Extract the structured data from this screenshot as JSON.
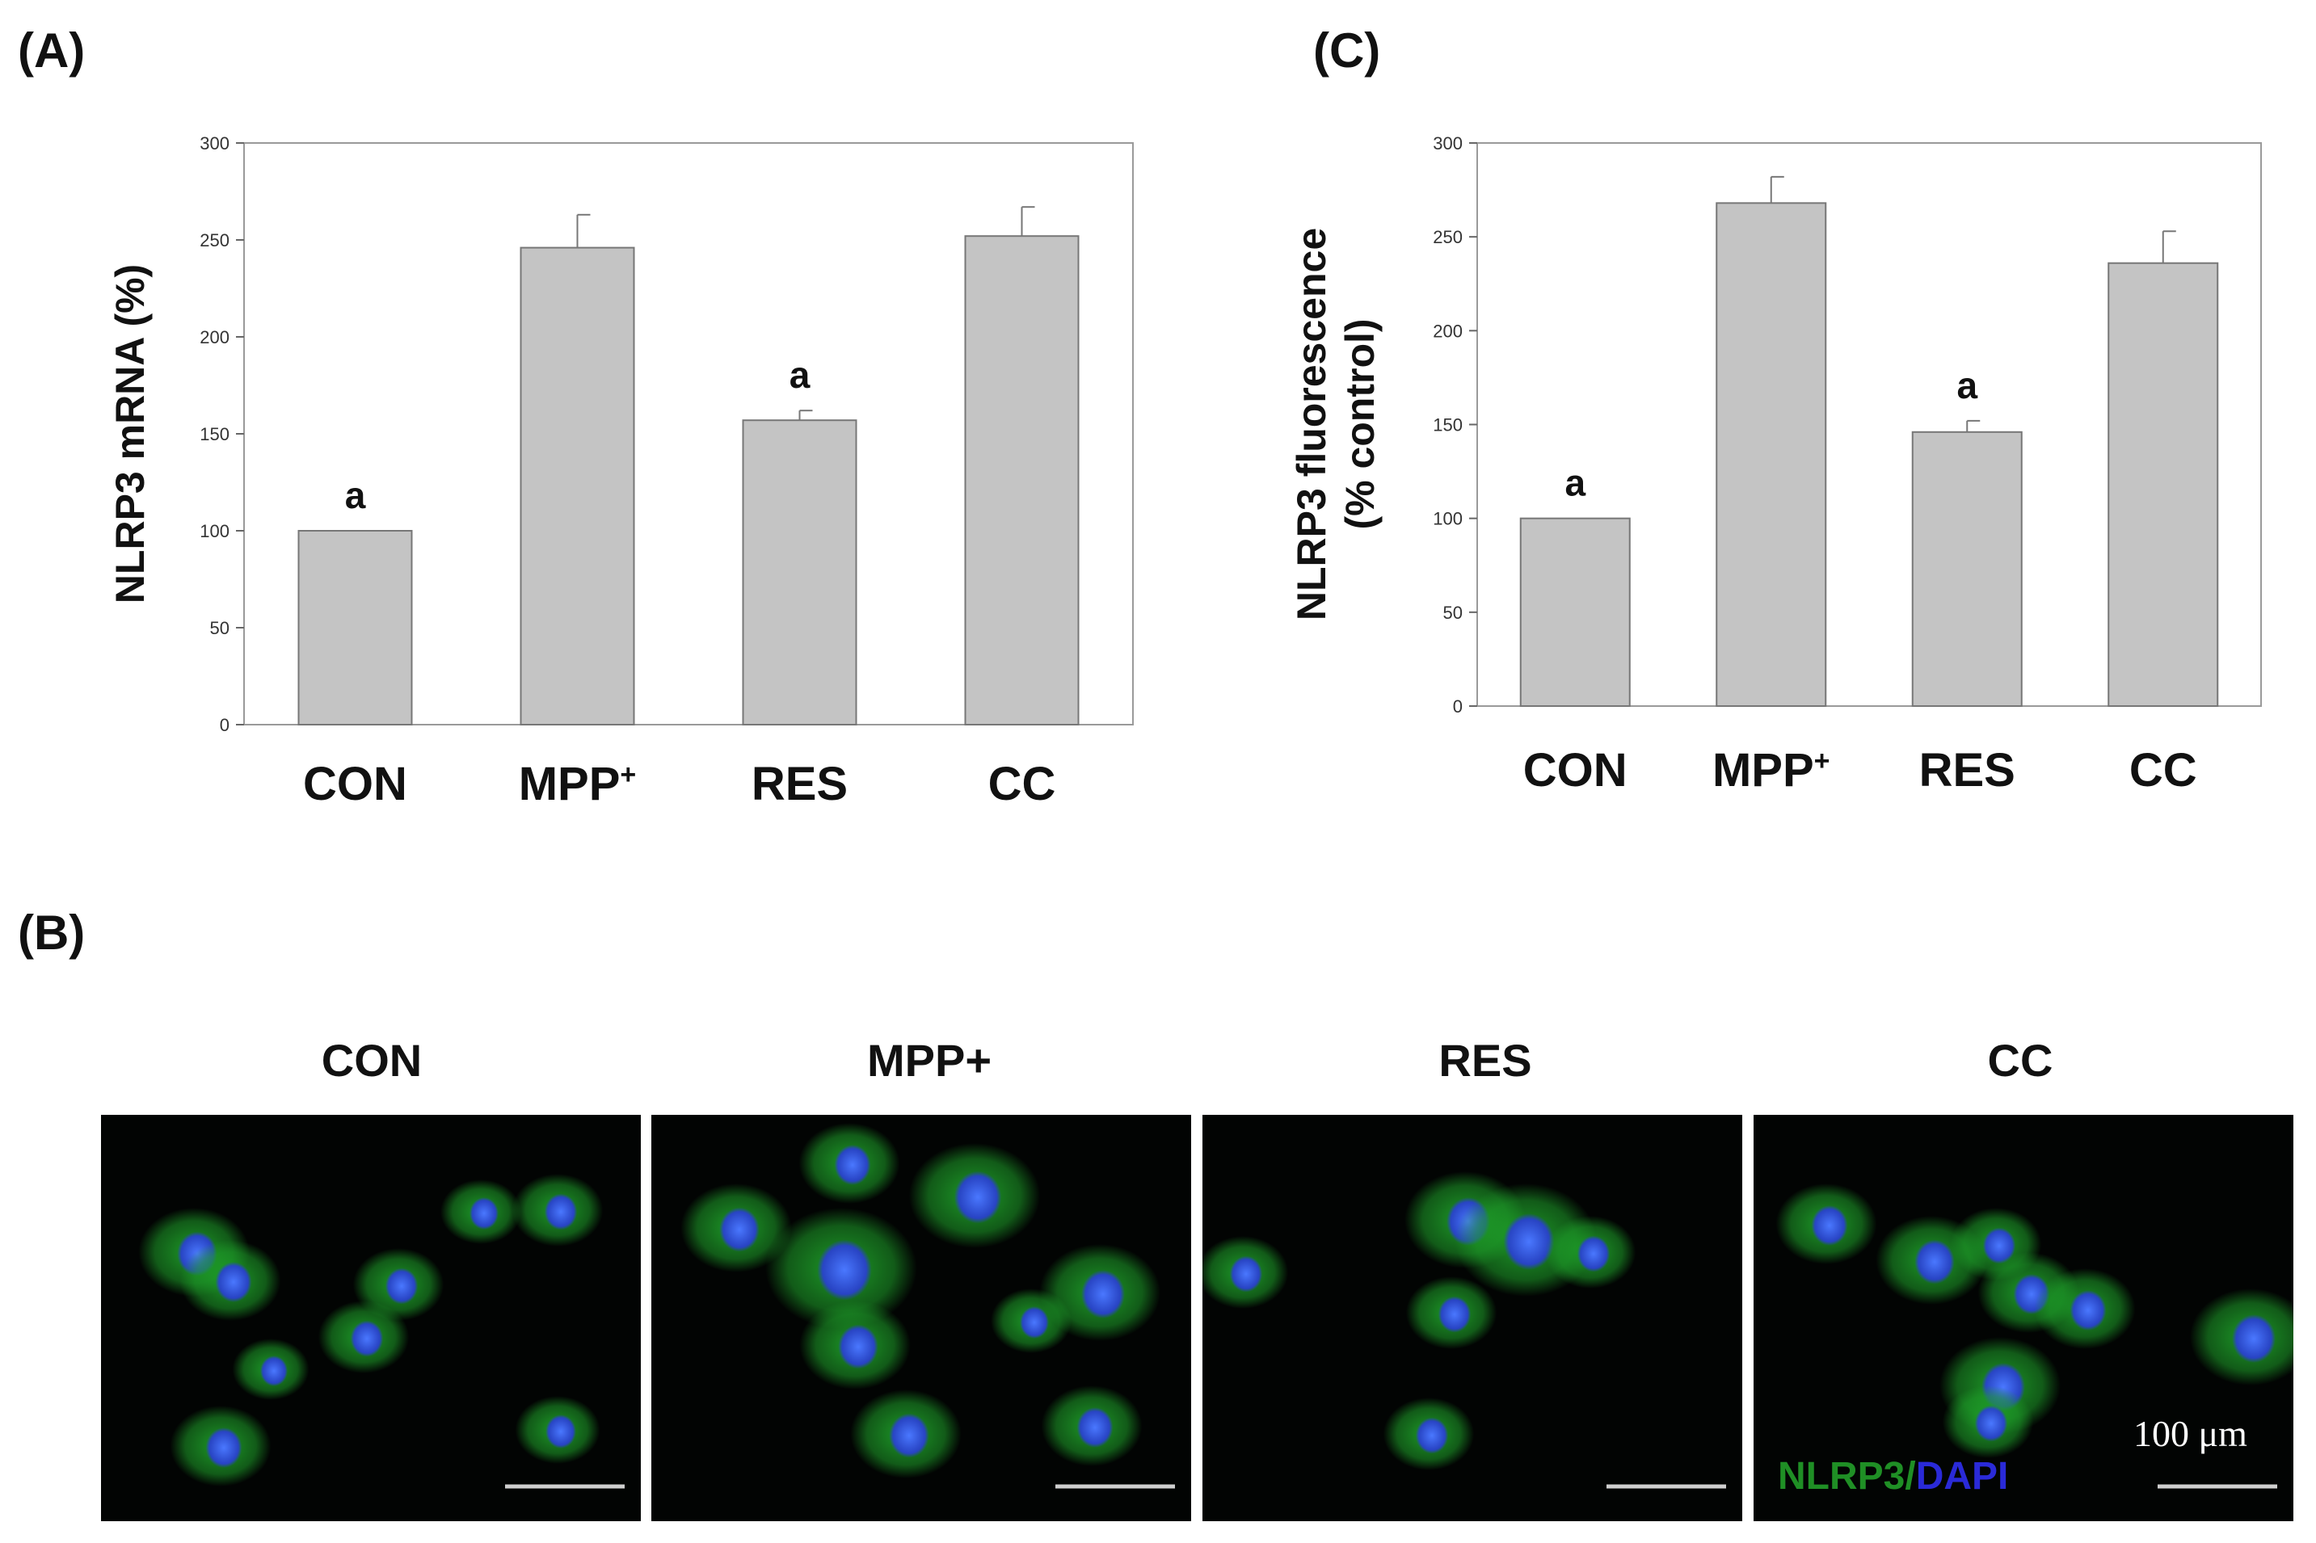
{
  "panels": {
    "A": {
      "letter": "(A)",
      "chart_data": {
        "type": "bar",
        "categories": [
          "CON",
          "MPP+",
          "RES",
          "CC"
        ],
        "values": [
          100,
          246,
          157,
          252
        ],
        "errors": [
          0,
          17,
          5,
          15
        ],
        "annotations": [
          "a",
          "",
          "a",
          ""
        ],
        "ylabel": "NLRP3 mRNA (%)",
        "ylim": [
          0,
          300
        ],
        "yticks": [
          "0",
          "50",
          "100",
          "150",
          "200",
          "250",
          "300"
        ]
      }
    },
    "C": {
      "letter": "(C)",
      "chart_data": {
        "type": "bar",
        "categories": [
          "CON",
          "MPP+",
          "RES",
          "CC"
        ],
        "values": [
          100,
          268,
          146,
          236
        ],
        "errors": [
          0,
          14,
          6,
          17
        ],
        "annotations": [
          "a",
          "",
          "a",
          ""
        ],
        "ylabel_lines": [
          "NLRP3 fluorescence",
          "(% control)"
        ],
        "ylim": [
          0,
          300
        ],
        "yticks": [
          "0",
          "50",
          "100",
          "150",
          "200",
          "250",
          "300"
        ]
      }
    },
    "B": {
      "letter": "(B)",
      "images": [
        {
          "title": "CON"
        },
        {
          "title": "MPP+"
        },
        {
          "title": "RES"
        },
        {
          "title": "CC"
        }
      ],
      "stain_label_green": "NLRP3",
      "stain_label_sep": "/",
      "stain_label_blue": "DAPI",
      "scale_label": "100 μm",
      "colors": {
        "nlrp3": "#1fa32a",
        "dapi": "#2a3ed6"
      }
    }
  }
}
